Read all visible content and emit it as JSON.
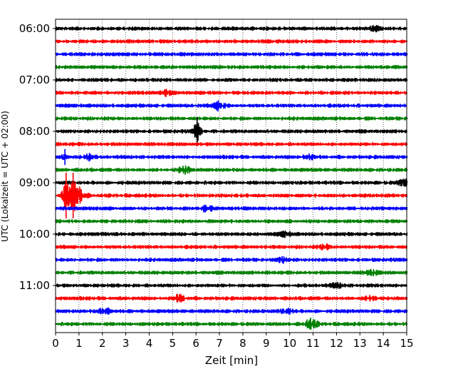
{
  "chart_data": {
    "type": "line",
    "chart_kind": "helicorder / seismogram drum plot",
    "xlabel": "Zeit  [min]",
    "ylabel": "UTC (Lokalzeit = UTC + 02:00)",
    "xlim": [
      0,
      15
    ],
    "x_ticks": [
      0,
      1,
      2,
      3,
      4,
      5,
      6,
      7,
      8,
      9,
      10,
      11,
      12,
      13,
      14,
      15
    ],
    "x_tick_labels": [
      "0",
      "1",
      "2",
      "3",
      "4",
      "5",
      "6",
      "7",
      "8",
      "9",
      "10",
      "11",
      "12",
      "13",
      "14",
      "15"
    ],
    "y_tick_labels": [
      "06:00",
      "07:00",
      "08:00",
      "09:00",
      "10:00",
      "11:00"
    ],
    "grid": "vertical dotted lines at each minute",
    "colors": [
      "#000000",
      "#ff0000",
      "#0000ff",
      "#008000"
    ],
    "traces_count": 24,
    "traces": [
      {
        "start": "06:00",
        "color": "#000000",
        "events": [
          {
            "min": 13.6,
            "amp": 0.5
          }
        ]
      },
      {
        "start": "06:15",
        "color": "#ff0000",
        "events": []
      },
      {
        "start": "06:30",
        "color": "#0000ff",
        "events": []
      },
      {
        "start": "06:45",
        "color": "#008000",
        "events": []
      },
      {
        "start": "07:00",
        "color": "#000000",
        "events": []
      },
      {
        "start": "07:15",
        "color": "#ff0000",
        "events": [
          {
            "min": 4.8,
            "amp": 0.7
          }
        ]
      },
      {
        "start": "07:30",
        "color": "#0000ff",
        "events": [
          {
            "min": 7.0,
            "amp": 1.0
          }
        ]
      },
      {
        "start": "07:45",
        "color": "#008000",
        "events": []
      },
      {
        "start": "08:00",
        "color": "#000000",
        "events": [
          {
            "min": 6.05,
            "amp": 2.5,
            "spike": true
          }
        ]
      },
      {
        "start": "08:15",
        "color": "#ff0000",
        "events": []
      },
      {
        "start": "08:30",
        "color": "#0000ff",
        "events": [
          {
            "min": 0.4,
            "amp": 1.4,
            "spike": true
          },
          {
            "min": 1.3,
            "amp": 0.8
          },
          {
            "min": 10.8,
            "amp": 0.6
          }
        ]
      },
      {
        "start": "08:45",
        "color": "#008000",
        "events": [
          {
            "min": 5.5,
            "amp": 0.8
          }
        ]
      },
      {
        "start": "09:00",
        "color": "#000000",
        "events": [
          {
            "min": 14.9,
            "amp": 0.9
          }
        ]
      },
      {
        "start": "09:15",
        "color": "#ff0000",
        "events": [
          {
            "min": 0.45,
            "amp": 4.0,
            "spike": true
          },
          {
            "min": 0.75,
            "amp": 4.0,
            "spike": true
          },
          {
            "min": 1.0,
            "amp": 2.2
          }
        ]
      },
      {
        "start": "09:30",
        "color": "#0000ff",
        "events": [
          {
            "min": 6.5,
            "amp": 0.7
          }
        ]
      },
      {
        "start": "09:45",
        "color": "#008000",
        "events": []
      },
      {
        "start": "10:00",
        "color": "#000000",
        "events": [
          {
            "min": 9.8,
            "amp": 0.5
          }
        ]
      },
      {
        "start": "10:15",
        "color": "#ff0000",
        "events": [
          {
            "min": 11.5,
            "amp": 0.5
          }
        ]
      },
      {
        "start": "10:30",
        "color": "#0000ff",
        "events": [
          {
            "min": 9.7,
            "amp": 0.5
          }
        ]
      },
      {
        "start": "10:45",
        "color": "#008000",
        "events": [
          {
            "min": 13.5,
            "amp": 0.6
          }
        ]
      },
      {
        "start": "11:00",
        "color": "#000000",
        "events": [
          {
            "min": 12.0,
            "amp": 0.5
          }
        ]
      },
      {
        "start": "11:15",
        "color": "#ff0000",
        "events": [
          {
            "min": 5.3,
            "amp": 0.7
          },
          {
            "min": 13.5,
            "amp": 0.6
          }
        ]
      },
      {
        "start": "11:30",
        "color": "#0000ff",
        "events": [
          {
            "min": 2.1,
            "amp": 0.7
          },
          {
            "min": 9.9,
            "amp": 0.6
          }
        ]
      },
      {
        "start": "11:45",
        "color": "#008000",
        "events": [
          {
            "min": 10.9,
            "amp": 1.2
          }
        ]
      }
    ]
  }
}
